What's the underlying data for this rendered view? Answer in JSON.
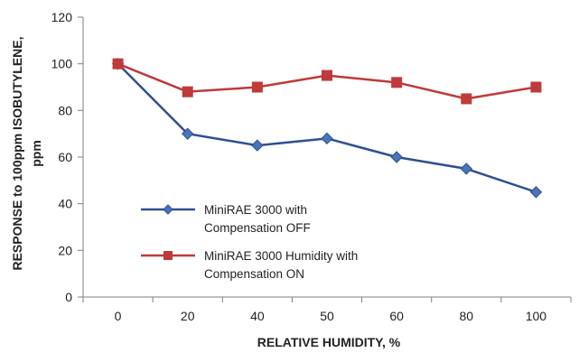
{
  "chart_data": {
    "type": "line",
    "title": "",
    "xlabel": "RELATIVE HUMIDITY, %",
    "ylabel_lines": [
      "RESPONSE to 100ppm ISOBUTYLENE,",
      "ppm"
    ],
    "categories": [
      "0",
      "20",
      "40",
      "50",
      "60",
      "80",
      "100"
    ],
    "ylim": [
      0,
      120
    ],
    "yticks": [
      "0",
      "20",
      "40",
      "60",
      "80",
      "100",
      "120"
    ],
    "grid": false,
    "legend_position": "lower-left",
    "series": [
      {
        "name_lines": [
          "MiniRAE 3000 with",
          "Compensation OFF"
        ],
        "color": "#2e4f93",
        "marker": "diamond",
        "values": [
          100,
          70,
          65,
          68,
          60,
          55,
          45
        ]
      },
      {
        "name_lines": [
          "MiniRAE 3000 Humidity with",
          "Compensation ON"
        ],
        "color": "#c0393b",
        "marker": "square",
        "values": [
          100,
          88,
          90,
          95,
          92,
          85,
          90
        ]
      }
    ]
  }
}
